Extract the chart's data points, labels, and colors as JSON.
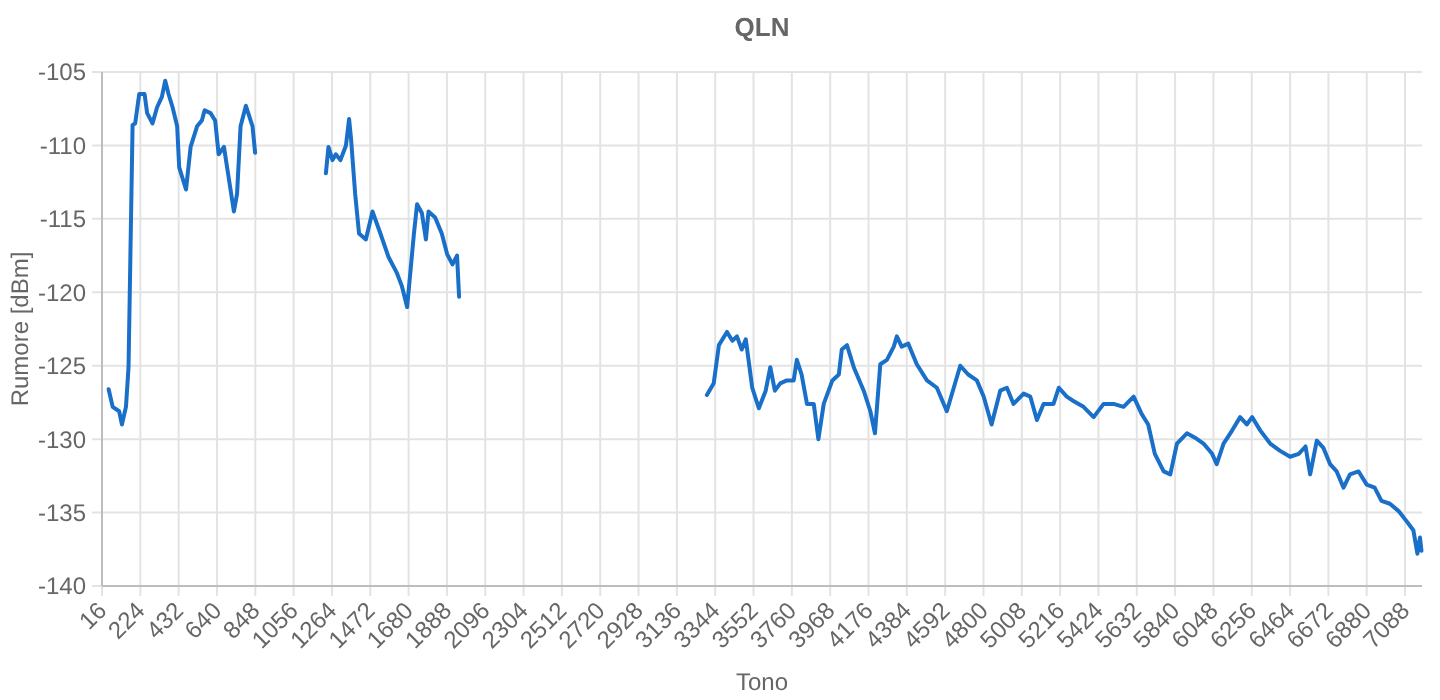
{
  "chart_data": {
    "type": "line",
    "title": "QLN",
    "xlabel": "Tono",
    "ylabel": "Rumore [dBm]",
    "xlim": [
      16,
      7180
    ],
    "ylim": [
      -140,
      -105
    ],
    "xticks": [
      16,
      224,
      432,
      640,
      848,
      1056,
      1264,
      1472,
      1680,
      1888,
      2096,
      2304,
      2512,
      2720,
      2928,
      3136,
      3344,
      3552,
      3760,
      3968,
      4176,
      4384,
      4592,
      4800,
      5008,
      5216,
      5424,
      5632,
      5840,
      6048,
      6256,
      6464,
      6672,
      6880,
      7088
    ],
    "yticks": [
      -140,
      -135,
      -130,
      -125,
      -120,
      -115,
      -110,
      -105
    ],
    "grid": true,
    "marker": "none",
    "line_style": "solid",
    "series": [
      {
        "color": "#1a6fc9",
        "x": [
          52,
          74,
          109,
          124,
          146,
          160,
          182,
          196,
          218,
          247,
          261,
          290,
          315,
          341,
          359,
          377,
          399,
          424,
          435,
          472,
          497,
          532,
          558,
          573,
          605,
          630,
          649,
          678,
          695,
          732,
          749,
          768,
          797,
          833,
          847,
          1000,
          1231,
          1245,
          1267,
          1285,
          1310,
          1340,
          1357,
          1368,
          1390,
          1411,
          1448,
          1484,
          1527,
          1571,
          1617,
          1644,
          1672,
          1709,
          1726,
          1752,
          1774,
          1788,
          1824,
          1860,
          1889,
          1918,
          1943,
          1954,
          2500,
          3299,
          3336,
          3364,
          3408,
          3437,
          3462,
          3488,
          3510,
          3545,
          3581,
          3618,
          3643,
          3668,
          3697,
          3733,
          3770,
          3787,
          3813,
          3842,
          3879,
          3904,
          3933,
          3980,
          4015,
          4031,
          4059,
          4096,
          4150,
          4186,
          4211,
          4240,
          4276,
          4313,
          4330,
          4356,
          4392,
          4438,
          4493,
          4547,
          4601,
          4674,
          4717,
          4764,
          4801,
          4844,
          4891,
          4927,
          4963,
          5018,
          5054,
          5090,
          5126,
          5180,
          5209,
          5252,
          5288,
          5343,
          5398,
          5452,
          5506,
          5560,
          5615,
          5659,
          5694,
          5730,
          5778,
          5814,
          5850,
          5904,
          5948,
          5994,
          6041,
          6066,
          6103,
          6150,
          6193,
          6229,
          6258,
          6302,
          6356,
          6410,
          6464,
          6511,
          6548,
          6573,
          6609,
          6645,
          6681,
          6717,
          6754,
          6789,
          6836,
          6880,
          6923,
          6960,
          7006,
          7053,
          7097,
          7133,
          7155,
          7169,
          7177
        ],
        "values": [
          -126.6,
          -127.8,
          -128.1,
          -129.0,
          -127.8,
          -125.1,
          -108.6,
          -108.5,
          -106.5,
          -106.5,
          -107.8,
          -108.5,
          -107.4,
          -106.7,
          -105.6,
          -106.5,
          -107.4,
          -108.7,
          -111.5,
          -113.0,
          -110.1,
          -108.7,
          -108.3,
          -107.6,
          -107.8,
          -108.3,
          -110.6,
          -110.1,
          -111.5,
          -114.5,
          -113.3,
          -108.7,
          -107.3,
          -108.7,
          -110.5,
          null,
          -111.9,
          -110.1,
          -111.0,
          -110.6,
          -111.0,
          -110.0,
          -108.2,
          -109.6,
          -113.3,
          -116.0,
          -116.4,
          -114.5,
          -116.0,
          -117.6,
          -118.7,
          -119.6,
          -121.0,
          -116.0,
          -114.0,
          -114.6,
          -116.4,
          -114.5,
          -114.9,
          -116.0,
          -117.4,
          -118.1,
          -117.5,
          -120.3,
          null,
          -127.0,
          -126.2,
          -123.6,
          -122.7,
          -123.3,
          -123.0,
          -123.9,
          -123.2,
          -126.5,
          -127.9,
          -126.7,
          -125.1,
          -126.7,
          -126.2,
          -126.0,
          -126.0,
          -124.6,
          -125.6,
          -127.6,
          -127.6,
          -130.0,
          -127.6,
          -126.0,
          -125.6,
          -123.9,
          -123.6,
          -125.1,
          -126.7,
          -128.1,
          -129.6,
          -124.9,
          -124.6,
          -123.7,
          -123.0,
          -123.7,
          -123.5,
          -124.9,
          -126.0,
          -126.5,
          -128.1,
          -125.0,
          -125.6,
          -126.0,
          -127.1,
          -129.0,
          -126.7,
          -126.5,
          -127.6,
          -126.9,
          -127.1,
          -128.7,
          -127.6,
          -127.6,
          -126.5,
          -127.1,
          -127.4,
          -127.8,
          -128.5,
          -127.6,
          -127.6,
          -127.8,
          -127.1,
          -128.3,
          -129.0,
          -131.0,
          -132.2,
          -132.4,
          -130.3,
          -129.6,
          -129.9,
          -130.3,
          -131.0,
          -131.7,
          -130.3,
          -129.4,
          -128.5,
          -129.0,
          -128.5,
          -129.4,
          -130.3,
          -130.8,
          -131.2,
          -131.0,
          -130.5,
          -132.4,
          -130.1,
          -130.6,
          -131.7,
          -132.2,
          -133.3,
          -132.4,
          -132.2,
          -133.1,
          -133.3,
          -134.2,
          -134.4,
          -134.9,
          -135.6,
          -136.2,
          -137.8,
          -136.7,
          -137.6
        ]
      }
    ]
  }
}
